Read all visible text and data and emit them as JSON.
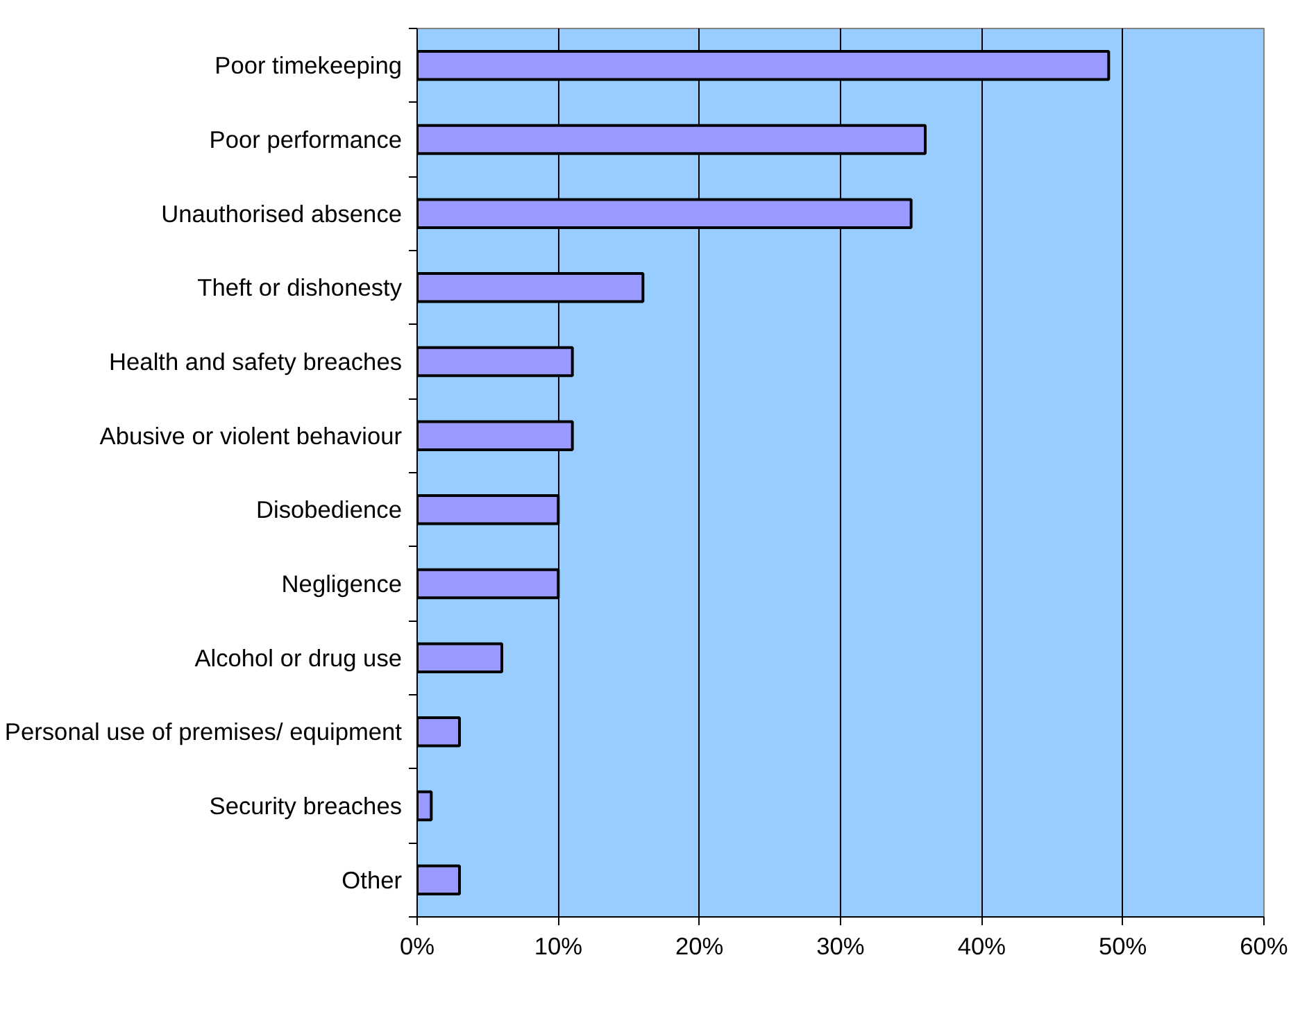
{
  "chart_data": {
    "type": "bar",
    "orientation": "horizontal",
    "categories": [
      "Poor timekeeping",
      "Poor performance",
      "Unauthorised absence",
      "Theft or dishonesty",
      "Health and safety breaches",
      "Abusive or violent behaviour",
      "Disobedience",
      "Negligence",
      "Alcohol or drug use",
      "Personal use of premises/ equipment",
      "Security breaches",
      "Other"
    ],
    "values": [
      49,
      36,
      35,
      16,
      11,
      11,
      10,
      10,
      6,
      3,
      1,
      3
    ],
    "color": "#9999ff",
    "xlim": [
      0,
      60
    ],
    "xticks": [
      {
        "value": 0,
        "label": "0%"
      },
      {
        "value": 10,
        "label": "10%"
      },
      {
        "value": 20,
        "label": "20%"
      },
      {
        "value": 30,
        "label": "30%"
      },
      {
        "value": 40,
        "label": "40%"
      },
      {
        "value": 50,
        "label": "50%"
      },
      {
        "value": 60,
        "label": "60%"
      }
    ],
    "grid": "x"
  }
}
